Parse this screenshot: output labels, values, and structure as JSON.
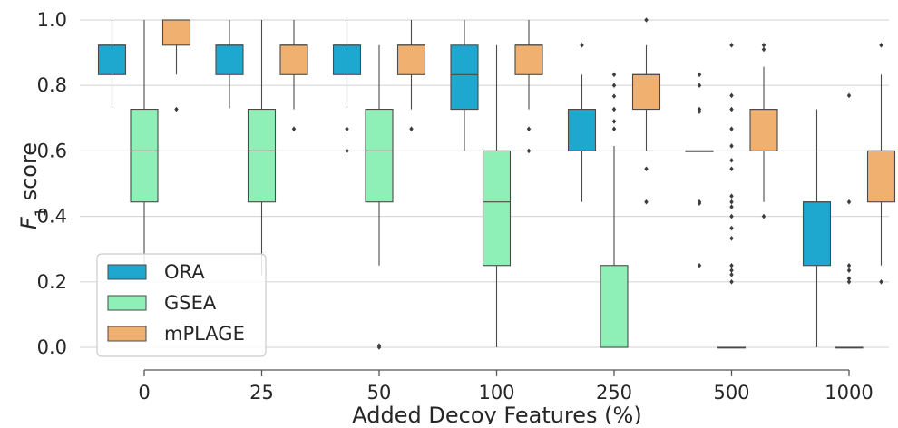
{
  "chart_data": {
    "type": "box",
    "xlabel": "Added Decoy Features (%)",
    "ylabel": "F1 score",
    "ylim": [
      0.0,
      1.0
    ],
    "yticks": [
      0.0,
      0.2,
      0.4,
      0.6,
      0.8,
      1.0
    ],
    "categories": [
      "0",
      "25",
      "50",
      "100",
      "250",
      "500",
      "1000"
    ],
    "grid": "horizontal",
    "legend_position": "lower-left",
    "series": [
      {
        "name": "ORA",
        "color": "#1ea8d0",
        "boxes": [
          {
            "category": "0",
            "whislo": 0.73,
            "q1": 0.833,
            "med": 0.923,
            "q3": 0.923,
            "whishi": 1.0,
            "fliers": []
          },
          {
            "category": "25",
            "whislo": 0.73,
            "q1": 0.833,
            "med": 0.923,
            "q3": 0.923,
            "whishi": 1.0,
            "fliers": []
          },
          {
            "category": "50",
            "whislo": 0.73,
            "q1": 0.833,
            "med": 0.923,
            "q3": 0.923,
            "whishi": 1.0,
            "fliers": [
              0.667,
              0.6
            ]
          },
          {
            "category": "100",
            "whislo": 0.6,
            "q1": 0.727,
            "med": 0.833,
            "q3": 0.923,
            "whishi": 1.0,
            "fliers": []
          },
          {
            "category": "250",
            "whislo": 0.444,
            "q1": 0.6,
            "med": 0.6,
            "q3": 0.727,
            "whishi": 0.833,
            "fliers": [
              0.923
            ]
          },
          {
            "category": "500",
            "whislo": 0.6,
            "q1": 0.6,
            "med": 0.6,
            "q3": 0.6,
            "whishi": 0.6,
            "fliers": [
              0.833,
              0.8,
              0.727,
              0.72,
              0.444,
              0.44,
              0.25
            ]
          },
          {
            "category": "1000",
            "whislo": 0.0,
            "q1": 0.25,
            "med": 0.444,
            "q3": 0.444,
            "whishi": 0.727,
            "fliers": []
          }
        ]
      },
      {
        "name": "GSEA",
        "color": "#8ef0b6",
        "boxes": [
          {
            "category": "0",
            "whislo": 0.22,
            "q1": 0.444,
            "med": 0.6,
            "q3": 0.727,
            "whishi": 1.0,
            "fliers": []
          },
          {
            "category": "25",
            "whislo": 0.22,
            "q1": 0.444,
            "med": 0.6,
            "q3": 0.727,
            "whishi": 1.0,
            "fliers": []
          },
          {
            "category": "50",
            "whislo": 0.25,
            "q1": 0.444,
            "med": 0.6,
            "q3": 0.727,
            "whishi": 0.923,
            "fliers": [
              0.0,
              0.005
            ]
          },
          {
            "category": "100",
            "whislo": 0.0,
            "q1": 0.25,
            "med": 0.444,
            "q3": 0.6,
            "whishi": 0.923,
            "fliers": []
          },
          {
            "category": "250",
            "whislo": 0.0,
            "q1": 0.0,
            "med": 0.0,
            "q3": 0.25,
            "whishi": 0.615,
            "fliers": [
              0.833,
              0.8,
              0.767,
              0.727,
              0.69,
              0.667
            ]
          },
          {
            "category": "500",
            "whislo": 0.0,
            "q1": 0.0,
            "med": 0.0,
            "q3": 0.0,
            "whishi": 0.0,
            "fliers": [
              0.923,
              0.769,
              0.727,
              0.667,
              0.615,
              0.571,
              0.545,
              0.462,
              0.444,
              0.429,
              0.4,
              0.364,
              0.333,
              0.25,
              0.235,
              0.222,
              0.2
            ]
          },
          {
            "category": "1000",
            "whislo": 0.0,
            "q1": 0.0,
            "med": 0.0,
            "q3": 0.0,
            "whishi": 0.0,
            "fliers": [
              0.769,
              0.444,
              0.25,
              0.235,
              0.21,
              0.2
            ]
          }
        ]
      },
      {
        "name": "mPLAGE",
        "color": "#f0b070",
        "boxes": [
          {
            "category": "0",
            "whislo": 0.833,
            "q1": 0.923,
            "med": 1.0,
            "q3": 1.0,
            "whishi": 1.0,
            "fliers": [
              0.727
            ]
          },
          {
            "category": "25",
            "whislo": 0.727,
            "q1": 0.833,
            "med": 0.923,
            "q3": 0.923,
            "whishi": 1.0,
            "fliers": [
              0.667
            ]
          },
          {
            "category": "50",
            "whislo": 0.727,
            "q1": 0.833,
            "med": 0.923,
            "q3": 0.923,
            "whishi": 1.0,
            "fliers": [
              0.667
            ]
          },
          {
            "category": "100",
            "whislo": 0.727,
            "q1": 0.833,
            "med": 0.923,
            "q3": 0.923,
            "whishi": 1.0,
            "fliers": [
              0.667,
              0.6
            ]
          },
          {
            "category": "250",
            "whislo": 0.6,
            "q1": 0.727,
            "med": 0.833,
            "q3": 0.833,
            "whishi": 0.923,
            "fliers": [
              1.0,
              0.545,
              0.444
            ]
          },
          {
            "category": "500",
            "whislo": 0.444,
            "q1": 0.6,
            "med": 0.727,
            "q3": 0.727,
            "whishi": 0.857,
            "fliers": [
              0.923,
              0.91,
              0.4
            ]
          },
          {
            "category": "1000",
            "whislo": 0.25,
            "q1": 0.444,
            "med": 0.6,
            "q3": 0.6,
            "whishi": 0.833,
            "fliers": [
              0.923,
              0.2
            ]
          }
        ]
      }
    ]
  }
}
